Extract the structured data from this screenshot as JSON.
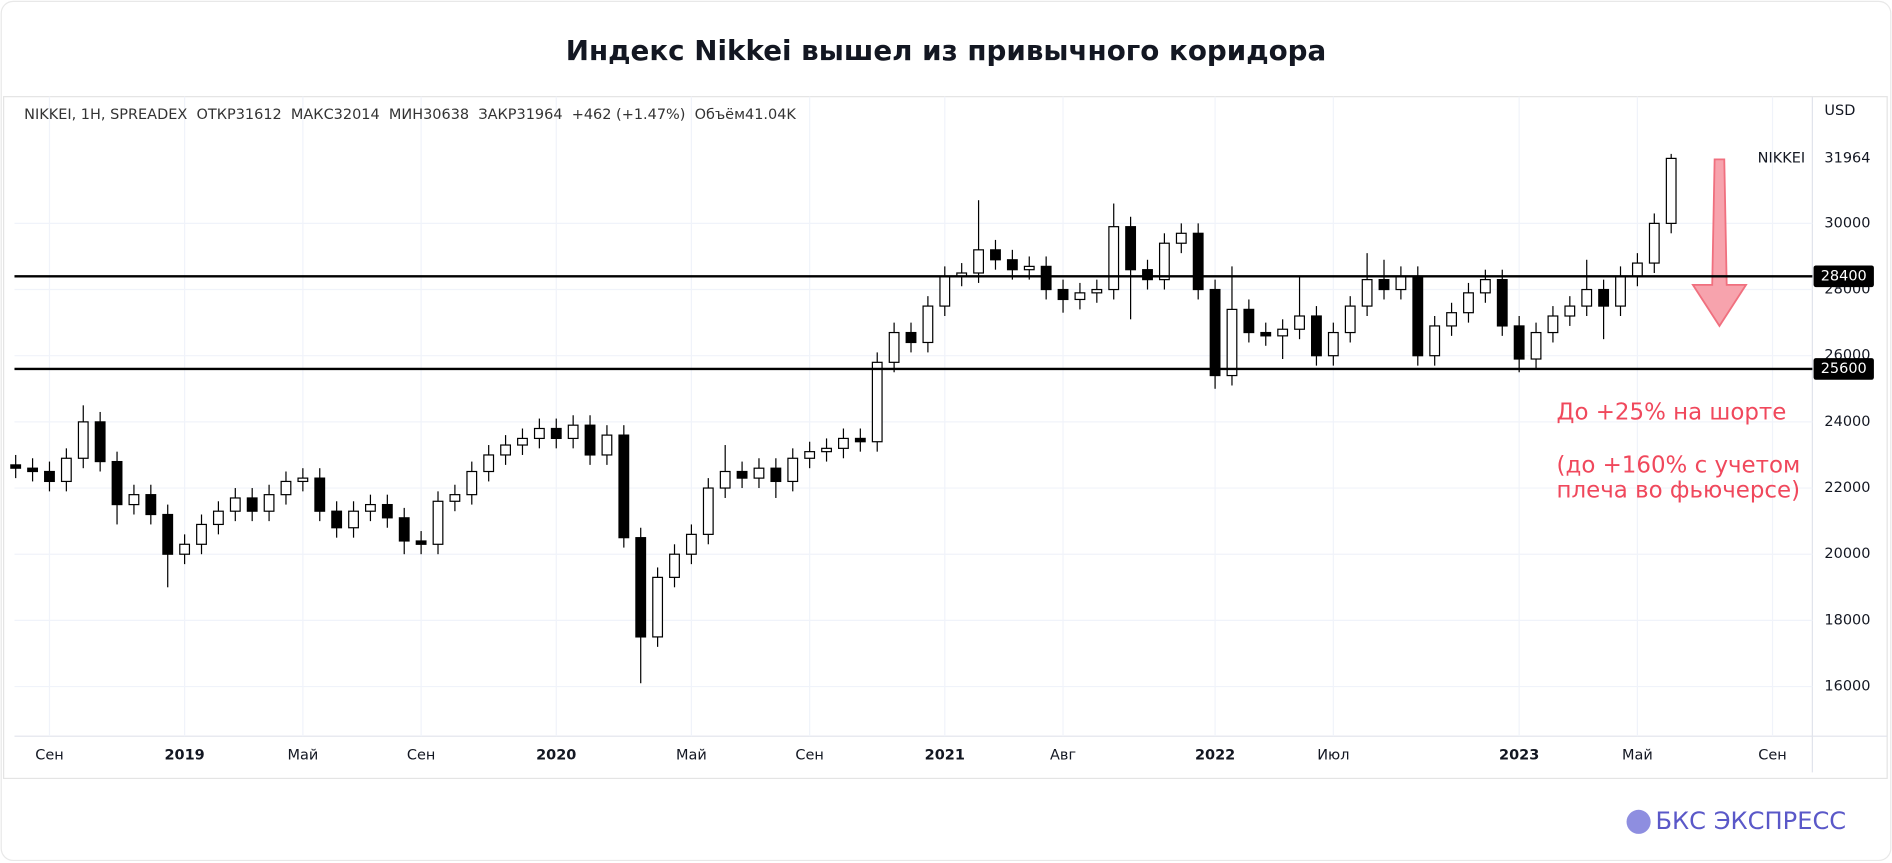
{
  "chart_data": {
    "type": "candlestick",
    "title": "Индекс Nikkei вышел из привычного коридора",
    "info": "NIKKEI, 1H, SPREADEX  ОТКР31612  МАКС32014  МИН30638  ЗАКР31964  +462 (+1.47%)  Объём41.04K",
    "currency": "USD",
    "symbol": "NIKKEI",
    "last_price": 31964,
    "hlines": [
      28400,
      25600
    ],
    "annotations": [
      "До +25% на шорте",
      "(до +160% с учетом",
      "плеча во фьючерсе)"
    ],
    "annotation_color": "#f0485c",
    "brand": "БКС ЭКСПРЕСС",
    "up_color": "#ffffff",
    "down_color": "#000000",
    "border_color": "#000000",
    "grid": true,
    "ylim": [
      14500,
      33830
    ],
    "yticks": [
      16000,
      18000,
      20000,
      22000,
      24000,
      26000,
      28000,
      30000
    ],
    "categories": [
      null,
      null,
      "Сен",
      null,
      null,
      null,
      null,
      null,
      null,
      null,
      "2019",
      null,
      null,
      null,
      null,
      null,
      null,
      "Май",
      null,
      null,
      null,
      null,
      null,
      null,
      "Сен",
      null,
      null,
      null,
      null,
      null,
      null,
      null,
      "2020",
      null,
      null,
      null,
      null,
      null,
      null,
      null,
      "Май",
      null,
      null,
      null,
      null,
      null,
      null,
      "Сен",
      null,
      null,
      null,
      null,
      null,
      null,
      null,
      "2021",
      null,
      null,
      null,
      null,
      null,
      null,
      "Авг",
      null,
      null,
      null,
      null,
      null,
      null,
      null,
      null,
      "2022",
      null,
      null,
      null,
      null,
      null,
      null,
      "Июл",
      null,
      null,
      null,
      null,
      null,
      null,
      null,
      null,
      null,
      null,
      "2023",
      null,
      null,
      null,
      null,
      null,
      null,
      "Май",
      null,
      null,
      null,
      null,
      null,
      null,
      null,
      "Сен",
      null
    ],
    "open": [
      22700,
      22600,
      22500,
      22200,
      22900,
      24000,
      22800,
      21500,
      21800,
      21200,
      20000,
      20300,
      20900,
      21300,
      21700,
      21300,
      21800,
      22200,
      22300,
      21300,
      20800,
      21300,
      21500,
      21100,
      20400,
      20300,
      21600,
      21800,
      22500,
      23000,
      23300,
      23500,
      23800,
      23500,
      23900,
      23000,
      23600,
      20500,
      17500,
      19300,
      20000,
      20600,
      22000,
      22500,
      22300,
      22600,
      22200,
      22900,
      23100,
      23200,
      23500,
      23400,
      25800,
      26700,
      26400,
      27500,
      28400,
      28500,
      29200,
      28900,
      28600,
      28700,
      28000,
      27700,
      27900,
      28000,
      29900,
      28600,
      28300,
      29400,
      29700,
      28000,
      25400,
      27400,
      26700,
      26600,
      26800,
      27200,
      26000,
      26700,
      27500,
      28300,
      28000,
      28400,
      26000,
      26900,
      27300,
      27900,
      28300,
      26900,
      25900,
      26700,
      27200,
      27500,
      28000,
      27500,
      28400,
      28800,
      30000,
      null,
      null,
      null,
      null,
      null,
      null,
      null
    ],
    "high": [
      23000,
      22900,
      22800,
      23200,
      24500,
      24300,
      23100,
      22100,
      22100,
      21500,
      20600,
      21200,
      21600,
      22000,
      22000,
      22100,
      22500,
      22600,
      22600,
      21600,
      21600,
      21800,
      21800,
      21400,
      20700,
      21900,
      22100,
      22800,
      23300,
      23600,
      23800,
      24100,
      24100,
      24200,
      24200,
      23900,
      23900,
      20800,
      19600,
      20300,
      20900,
      22300,
      23300,
      22800,
      22900,
      22900,
      23200,
      23400,
      23500,
      23800,
      23800,
      26100,
      27000,
      27000,
      27800,
      28700,
      28800,
      30700,
      29500,
      29200,
      29000,
      29000,
      28300,
      28200,
      28300,
      30600,
      30200,
      28900,
      29700,
      30000,
      30000,
      28300,
      28700,
      27700,
      27000,
      27100,
      28400,
      27500,
      27000,
      27800,
      29100,
      28900,
      28700,
      28700,
      27200,
      27600,
      28200,
      28600,
      28600,
      27200,
      27000,
      27500,
      27800,
      28900,
      28300,
      28700,
      29100,
      30300,
      32100,
      null,
      null,
      null,
      null,
      null,
      null,
      null
    ],
    "low": [
      22300,
      22200,
      21900,
      21900,
      22600,
      22500,
      20900,
      21200,
      20900,
      19000,
      19700,
      20000,
      20600,
      21000,
      21000,
      21000,
      21500,
      21900,
      21000,
      20500,
      20500,
      21000,
      20800,
      20000,
      20000,
      20000,
      21300,
      21500,
      22200,
      22700,
      23000,
      23200,
      23200,
      23200,
      22700,
      22700,
      20200,
      16100,
      17200,
      19000,
      19700,
      20300,
      21700,
      22000,
      22000,
      21700,
      21900,
      22600,
      22800,
      22900,
      23100,
      23100,
      25500,
      26100,
      26100,
      27200,
      28100,
      28200,
      28600,
      28300,
      28300,
      27700,
      27300,
      27400,
      27600,
      27700,
      27100,
      28000,
      28000,
      29100,
      27700,
      25000,
      25100,
      26400,
      26300,
      25900,
      26500,
      25700,
      25700,
      26400,
      27200,
      27700,
      27700,
      25700,
      25700,
      26600,
      27000,
      27600,
      26600,
      25500,
      25600,
      26400,
      26900,
      27200,
      26500,
      27200,
      28100,
      28500,
      29700,
      null,
      null,
      null,
      null,
      null,
      null,
      null
    ],
    "close": [
      22600,
      22500,
      22200,
      22900,
      24000,
      22800,
      21500,
      21800,
      21200,
      20000,
      20300,
      20900,
      21300,
      21700,
      21300,
      21800,
      22200,
      22300,
      21300,
      20800,
      21300,
      21500,
      21100,
      20400,
      20300,
      21600,
      21800,
      22500,
      23000,
      23300,
      23500,
      23800,
      23500,
      23900,
      23000,
      23600,
      20500,
      17500,
      19300,
      20000,
      20600,
      22000,
      22500,
      22300,
      22600,
      22200,
      22900,
      23100,
      23200,
      23500,
      23400,
      25800,
      26700,
      26400,
      27500,
      28400,
      28500,
      29200,
      28900,
      28600,
      28700,
      28000,
      27700,
      27900,
      28000,
      29900,
      28600,
      28300,
      29400,
      29700,
      28000,
      25400,
      27400,
      26700,
      26600,
      26800,
      27200,
      26000,
      26700,
      27500,
      28300,
      28000,
      28400,
      26000,
      26900,
      27300,
      27900,
      28300,
      26900,
      25900,
      26700,
      27200,
      27500,
      28000,
      27500,
      28400,
      28800,
      30000,
      31964,
      null,
      null,
      null,
      null,
      null,
      null,
      null
    ]
  }
}
